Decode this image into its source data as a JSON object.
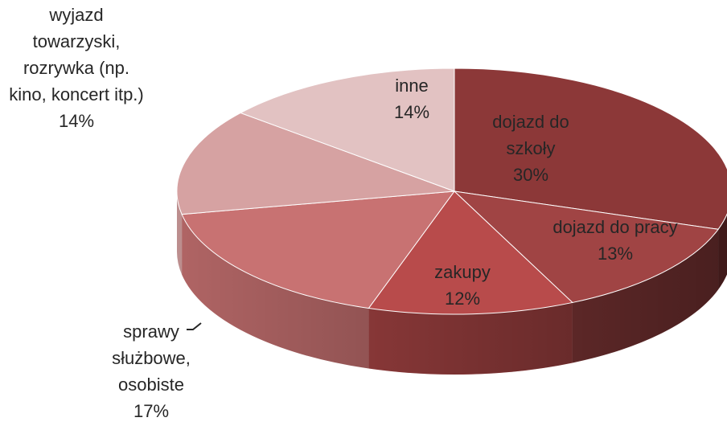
{
  "chart_data": {
    "type": "pie3d",
    "categories": [
      "dojazd do szkoły",
      "dojazd do pracy",
      "zakupy",
      "sprawy służbowe, osobiste",
      "wyjazd towarzyski, rozrywka (np. kino, koncert itp.)",
      "inne"
    ],
    "values": [
      30,
      13,
      12,
      17,
      14,
      14
    ],
    "value_labels": [
      "30%",
      "13%",
      "12%",
      "17%",
      "14%",
      "14%"
    ],
    "colors": [
      "#8c3838",
      "#a04444",
      "#b84b4b",
      "#c87272",
      "#d6a2a2",
      "#e2c2c2"
    ]
  }
}
